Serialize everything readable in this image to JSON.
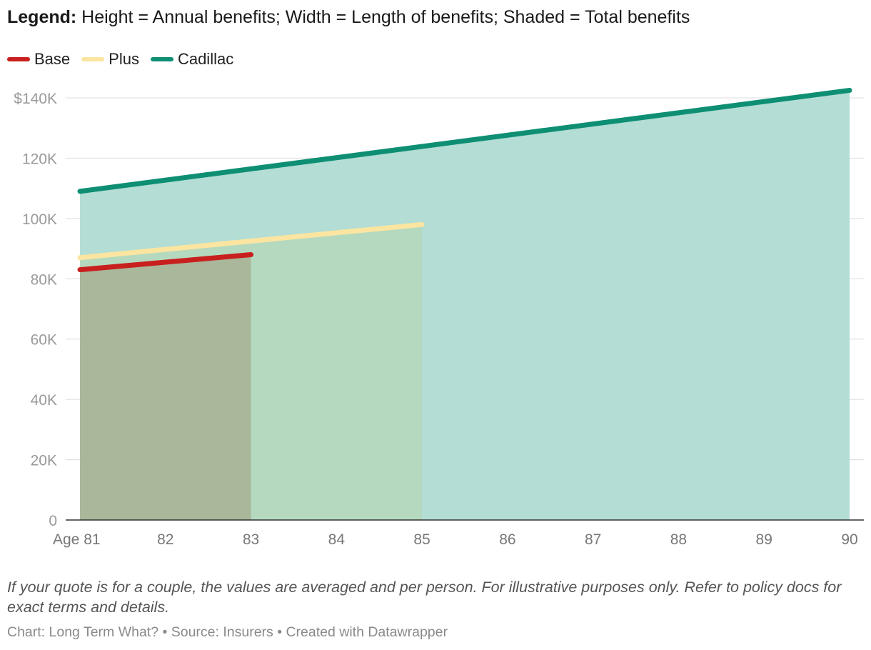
{
  "subtitle": {
    "label": "Legend:",
    "text": " Height = Annual benefits; Width = Length of benefits; Shaded = Total benefits"
  },
  "footnote": "If your quote is for a couple, the values are averaged and per person. For illustrative purposes only. Refer to policy docs for exact terms and details.",
  "credit": "Chart: Long Term What? • Source: Insurers • Created with Datawrapper",
  "chart_data": {
    "type": "area",
    "title": "",
    "xlabel": "",
    "ylabel": "",
    "x_ticks": [
      {
        "value": 81,
        "label": "Age 81"
      },
      {
        "value": 82,
        "label": "82"
      },
      {
        "value": 83,
        "label": "83"
      },
      {
        "value": 84,
        "label": "84"
      },
      {
        "value": 85,
        "label": "85"
      },
      {
        "value": 86,
        "label": "86"
      },
      {
        "value": 87,
        "label": "87"
      },
      {
        "value": 88,
        "label": "88"
      },
      {
        "value": 89,
        "label": "89"
      },
      {
        "value": 90,
        "label": "90"
      }
    ],
    "y_ticks": [
      {
        "value": 0,
        "label": "0"
      },
      {
        "value": 20000,
        "label": "20K"
      },
      {
        "value": 40000,
        "label": "40K"
      },
      {
        "value": 60000,
        "label": "60K"
      },
      {
        "value": 80000,
        "label": "80K"
      },
      {
        "value": 100000,
        "label": "100K"
      },
      {
        "value": 120000,
        "label": "120K"
      },
      {
        "value": 140000,
        "label": "$140K"
      }
    ],
    "xlim": [
      81,
      90
    ],
    "ylim": [
      0,
      140000
    ],
    "grid": true,
    "legend_placement": "top-left",
    "series": [
      {
        "name": "Cadillac",
        "color": "#0e8f74",
        "fill": "#b3ddd5",
        "x": [
          81,
          90
        ],
        "values": [
          109000,
          142500
        ]
      },
      {
        "name": "Plus",
        "color": "#fbe5a0",
        "fill": "#b4d9bf",
        "x": [
          81,
          85
        ],
        "values": [
          87000,
          98000
        ]
      },
      {
        "name": "Base",
        "color": "#c8201f",
        "fill": "#a9b79b",
        "x": [
          81,
          83
        ],
        "values": [
          83000,
          88000
        ]
      }
    ]
  }
}
